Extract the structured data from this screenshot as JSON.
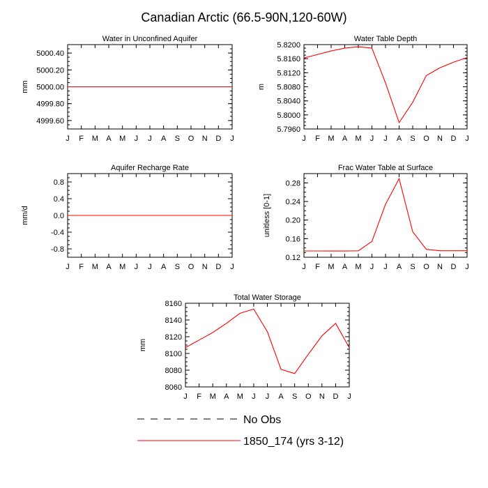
{
  "figure": {
    "title": "Canadian Arctic (66.5-90N,120-60W)"
  },
  "chart_data": [
    {
      "type": "line",
      "title": "Water in Unconfined Aquifer",
      "ylabel": "mm",
      "xlabel": "",
      "x": [
        "J",
        "F",
        "M",
        "A",
        "M",
        "J",
        "J",
        "A",
        "S",
        "O",
        "N",
        "D",
        "J"
      ],
      "ylim": [
        4999.5,
        5000.5
      ],
      "yticks": [
        "4999.60",
        "4999.80",
        "5000.00",
        "5000.20",
        "5000.40"
      ],
      "series": [
        {
          "name": "1850_174 (yrs 3-12)",
          "color": "#ff0000",
          "values": [
            5000,
            5000,
            5000,
            5000,
            5000,
            5000,
            5000,
            5000,
            5000,
            5000,
            5000,
            5000,
            5000
          ]
        }
      ]
    },
    {
      "type": "line",
      "title": "Water Table Depth",
      "ylabel": "m",
      "xlabel": "",
      "x": [
        "J",
        "F",
        "M",
        "A",
        "M",
        "J",
        "J",
        "A",
        "S",
        "O",
        "N",
        "D",
        "J"
      ],
      "ylim": [
        5.796,
        5.82
      ],
      "yticks": [
        "5.7960",
        "5.8000",
        "5.8040",
        "5.8080",
        "5.8120",
        "5.8160",
        "5.8200"
      ],
      "series": [
        {
          "name": "1850_174 (yrs 3-12)",
          "color": "#ff0000",
          "values": [
            5.8162,
            5.8172,
            5.8182,
            5.819,
            5.8194,
            5.819,
            5.8091,
            5.7978,
            5.8036,
            5.8112,
            5.8134,
            5.815,
            5.8163
          ]
        }
      ]
    },
    {
      "type": "line",
      "title": "Aquifer Recharge Rate",
      "ylabel": "mm/d",
      "xlabel": "",
      "x": [
        "J",
        "F",
        "M",
        "A",
        "M",
        "J",
        "J",
        "A",
        "S",
        "O",
        "N",
        "D",
        "J"
      ],
      "ylim": [
        -1.0,
        1.0
      ],
      "yticks": [
        "-0.8",
        "-0.4",
        "0.0",
        "0.4",
        "0.8"
      ],
      "series": [
        {
          "name": "1850_174 (yrs 3-12)",
          "color": "#ff0000",
          "values": [
            0,
            0,
            0,
            0,
            0,
            0,
            0,
            0,
            0,
            0,
            0,
            0,
            0
          ]
        }
      ]
    },
    {
      "type": "line",
      "title": "Frac Water Table at Surface",
      "ylabel": "unitless [0-1]",
      "xlabel": "",
      "x": [
        "J",
        "F",
        "M",
        "A",
        "M",
        "J",
        "J",
        "A",
        "S",
        "O",
        "N",
        "D",
        "J"
      ],
      "ylim": [
        0.12,
        0.3
      ],
      "yticks": [
        "0.12",
        "0.16",
        "0.20",
        "0.24",
        "0.28"
      ],
      "series": [
        {
          "name": "1850_174 (yrs 3-12)",
          "color": "#ff0000",
          "values": [
            0.1335,
            0.1335,
            0.1334,
            0.1334,
            0.1338,
            0.154,
            0.234,
            0.289,
            0.175,
            0.137,
            0.134,
            0.134,
            0.134
          ]
        }
      ]
    },
    {
      "type": "line",
      "title": "Total Water Storage",
      "ylabel": "mm",
      "xlabel": "",
      "x": [
        "J",
        "F",
        "M",
        "A",
        "M",
        "J",
        "J",
        "A",
        "S",
        "O",
        "N",
        "D",
        "J"
      ],
      "ylim": [
        8060,
        8160
      ],
      "yticks": [
        "8060",
        "8080",
        "8100",
        "8120",
        "8140",
        "8160"
      ],
      "series": [
        {
          "name": "1850_174 (yrs 3-12)",
          "color": "#ff0000",
          "values": [
            8107,
            8116,
            8125,
            8136,
            8148,
            8153,
            8126,
            8081,
            8076,
            8099,
            8121,
            8136,
            8107
          ]
        }
      ]
    }
  ],
  "legend": {
    "entries": [
      {
        "label": "No Obs",
        "color": "#000000",
        "style": "dashed"
      },
      {
        "label": "1850_174 (yrs 3-12)",
        "color": "#ff0000",
        "style": "solid"
      }
    ]
  }
}
